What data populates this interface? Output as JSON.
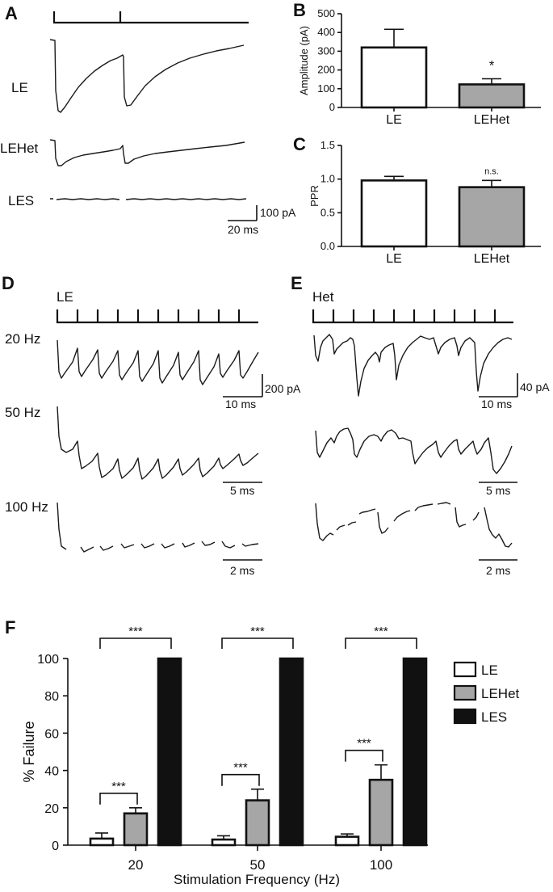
{
  "panel_letters": [
    "A",
    "B",
    "C",
    "D",
    "E",
    "F"
  ],
  "panelA": {
    "traces": [
      "LE",
      "LEHet",
      "LES"
    ],
    "scalebar_y": "100 pA",
    "scalebar_x": "20 ms"
  },
  "panelD": {
    "genotype": "LE",
    "rows": [
      "20 Hz",
      "50 Hz",
      "100 Hz"
    ],
    "scalebar_y": "200 pA",
    "scalebars_x": [
      "10 ms",
      "5 ms",
      "2 ms"
    ]
  },
  "panelE": {
    "genotype": "Het",
    "scalebar_y": "40 pA",
    "scalebars_x": [
      "10 ms",
      "5 ms",
      "2 ms"
    ]
  },
  "chart_data": [
    {
      "panel": "B",
      "type": "bar",
      "categories": [
        "LE",
        "LEHet"
      ],
      "values": [
        320,
        123
      ],
      "errors": [
        97,
        30
      ],
      "colors": [
        "#ffffff",
        "#a6a6a6"
      ],
      "ylabel": "Amplitude (pA)",
      "ylim": [
        0,
        500
      ],
      "yticks": [
        "0",
        "100",
        "200",
        "300",
        "400",
        "500"
      ],
      "annotation": "*"
    },
    {
      "panel": "C",
      "type": "bar",
      "categories": [
        "LE",
        "LEHet"
      ],
      "values": [
        0.98,
        0.88
      ],
      "errors": [
        0.06,
        0.1
      ],
      "colors": [
        "#ffffff",
        "#a6a6a6"
      ],
      "ylabel": "PPR",
      "ylim": [
        0,
        1.5
      ],
      "yticks": [
        "0.0",
        "0.5",
        "1.0",
        "1.5"
      ],
      "annotation": "n.s."
    },
    {
      "panel": "F",
      "type": "bar",
      "categories": [
        "20",
        "50",
        "100"
      ],
      "series": [
        {
          "name": "LE",
          "color": "#ffffff",
          "values": [
            3.5,
            3,
            4.5
          ],
          "errors": [
            3,
            2,
            1.5
          ]
        },
        {
          "name": "LEHet",
          "color": "#a6a6a6",
          "values": [
            17,
            24,
            35
          ],
          "errors": [
            3,
            6,
            8
          ]
        },
        {
          "name": "LES",
          "color": "#111111",
          "values": [
            100,
            100,
            100
          ],
          "errors": [
            0,
            0,
            0
          ]
        }
      ],
      "xlabel": "Stimulation Frequency (Hz)",
      "ylabel": "% Failure",
      "ylim": [
        0,
        100
      ],
      "yticks": [
        "0",
        "20",
        "40",
        "60",
        "80",
        "100"
      ],
      "significance": [
        "***",
        "***",
        "***",
        "***",
        "***",
        "***"
      ],
      "legend_position": "right"
    }
  ]
}
